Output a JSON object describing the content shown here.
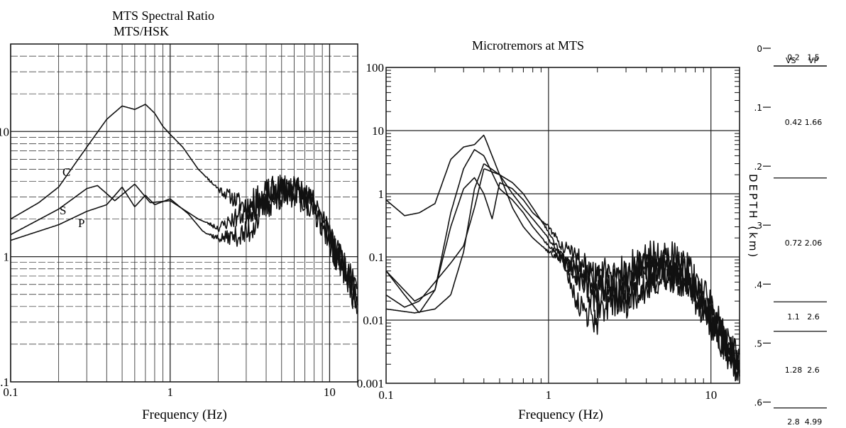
{
  "chart_data": [
    {
      "type": "line",
      "title": "MTS Spectral Ratio",
      "subtitle": "MTS/HSK",
      "xlabel": "Frequency (Hz)",
      "ylabel": "",
      "xscale": "log",
      "yscale": "log",
      "xlim": [
        0.1,
        15
      ],
      "ylim": [
        0.1,
        50
      ],
      "grid": true,
      "x_tick_labels": [
        "0.1",
        "1",
        "10"
      ],
      "y_tick_labels": [
        "0.1",
        "1",
        "10"
      ],
      "series": [
        {
          "name": "C",
          "color": "#111111",
          "x": [
            0.1,
            0.15,
            0.2,
            0.3,
            0.4,
            0.5,
            0.6,
            0.7,
            0.8,
            0.9,
            1.0,
            1.2,
            1.5,
            2,
            3,
            4,
            5,
            6,
            7,
            8,
            9,
            10,
            11,
            12,
            13,
            14,
            15
          ],
          "y": [
            2.0,
            2.7,
            3.6,
            7.5,
            12.5,
            16,
            15,
            16.5,
            14,
            11,
            9.5,
            7.5,
            5,
            3.5,
            2.5,
            3.0,
            3.2,
            3.5,
            3.0,
            2.6,
            2.0,
            1.5,
            1.1,
            0.9,
            0.7,
            0.5,
            0.45
          ]
        },
        {
          "name": "S",
          "color": "#111111",
          "x": [
            0.1,
            0.2,
            0.3,
            0.35,
            0.45,
            0.6,
            0.75,
            1.0,
            1.5,
            2,
            3,
            4,
            5,
            6,
            7,
            8,
            9,
            10,
            11,
            12,
            13,
            14,
            15
          ],
          "y": [
            1.5,
            2.4,
            3.5,
            3.7,
            2.8,
            3.8,
            2.7,
            2.8,
            2.0,
            1.7,
            2.3,
            3.1,
            3.5,
            3.4,
            2.9,
            2.4,
            1.9,
            1.5,
            1.0,
            0.9,
            0.7,
            0.55,
            0.45
          ]
        },
        {
          "name": "P",
          "color": "#111111",
          "x": [
            0.1,
            0.2,
            0.3,
            0.4,
            0.5,
            0.6,
            0.7,
            0.8,
            1.0,
            1.3,
            1.6,
            2,
            3,
            4,
            5,
            6,
            7,
            8,
            9,
            10,
            11,
            12,
            13,
            14,
            15
          ],
          "y": [
            1.35,
            1.8,
            2.3,
            2.6,
            3.6,
            2.5,
            3.1,
            2.6,
            2.9,
            2.2,
            1.6,
            1.4,
            1.5,
            2.6,
            3.2,
            3.3,
            3.0,
            2.5,
            1.9,
            1.4,
            1.0,
            0.85,
            0.75,
            0.6,
            0.5
          ]
        }
      ],
      "curve_labels": [
        "C",
        "S",
        "P"
      ]
    },
    {
      "type": "line",
      "title": "Microtremors at MTS",
      "xlabel": "Frequency (Hz)",
      "ylabel": "",
      "xscale": "log",
      "yscale": "log",
      "xlim": [
        0.1,
        15
      ],
      "ylim": [
        0.001,
        100
      ],
      "grid": true,
      "x_tick_labels": [
        "0.1",
        "1",
        "10"
      ],
      "y_tick_labels": [
        "0.001",
        "0.01",
        "0.1",
        "1",
        "10",
        "100"
      ],
      "series": [
        {
          "color": "#111111",
          "x": [
            0.1,
            0.13,
            0.16,
            0.2,
            0.25,
            0.3,
            0.35,
            0.4,
            0.5,
            0.6,
            0.7,
            0.8,
            1.0,
            1.5,
            2,
            3,
            4,
            5,
            7,
            9,
            10,
            12,
            14,
            15
          ],
          "y": [
            0.8,
            0.45,
            0.5,
            0.7,
            3.5,
            5.5,
            6.0,
            8.5,
            2.0,
            0.6,
            0.3,
            0.2,
            0.12,
            0.07,
            0.04,
            0.02,
            0.03,
            0.05,
            0.05,
            0.02,
            0.009,
            0.004,
            0.002,
            0.0015
          ]
        },
        {
          "color": "#111111",
          "x": [
            0.1,
            0.15,
            0.2,
            0.25,
            0.3,
            0.35,
            0.4,
            0.5,
            0.6,
            0.7,
            0.8,
            1.0,
            1.5,
            2,
            3,
            4,
            5,
            7,
            9,
            10,
            12,
            14,
            15
          ],
          "y": [
            0.06,
            0.02,
            0.03,
            0.5,
            2.5,
            5.0,
            4.0,
            1.2,
            0.8,
            0.5,
            0.3,
            0.15,
            0.05,
            0.02,
            0.025,
            0.04,
            0.06,
            0.04,
            0.015,
            0.01,
            0.005,
            0.002,
            0.0015
          ]
        },
        {
          "color": "#111111",
          "x": [
            0.1,
            0.15,
            0.2,
            0.25,
            0.3,
            0.35,
            0.4,
            0.5,
            0.6,
            0.7,
            0.8,
            1.0,
            1.2,
            1.5,
            2,
            3,
            4,
            5,
            7,
            9,
            10,
            12,
            14,
            15
          ],
          "y": [
            0.015,
            0.013,
            0.015,
            0.025,
            0.12,
            1.2,
            3.0,
            2.0,
            1.0,
            0.6,
            0.4,
            0.2,
            0.1,
            0.05,
            0.03,
            0.05,
            0.08,
            0.06,
            0.04,
            0.02,
            0.01,
            0.005,
            0.002,
            0.0012
          ]
        },
        {
          "color": "#111111",
          "x": [
            0.1,
            0.13,
            0.16,
            0.2,
            0.25,
            0.3,
            0.35,
            0.4,
            0.45,
            0.5,
            0.6,
            0.7,
            0.8,
            1.0,
            1.2,
            1.5,
            2,
            3,
            4,
            5,
            7,
            9,
            10,
            12,
            14,
            15
          ],
          "y": [
            0.06,
            0.025,
            0.013,
            0.03,
            0.3,
            1.2,
            1.8,
            1.0,
            0.4,
            1.5,
            1.2,
            0.8,
            0.5,
            0.3,
            0.15,
            0.1,
            0.05,
            0.06,
            0.1,
            0.12,
            0.07,
            0.03,
            0.015,
            0.007,
            0.003,
            0.002
          ]
        },
        {
          "color": "#111111",
          "x": [
            0.1,
            0.13,
            0.16,
            0.2,
            0.25,
            0.3,
            0.35,
            0.4,
            0.5,
            0.6,
            0.7,
            0.8,
            1.0,
            1.2,
            1.5,
            2,
            3,
            4,
            5,
            7,
            9,
            10,
            12,
            14,
            15
          ],
          "y": [
            0.025,
            0.016,
            0.02,
            0.04,
            0.08,
            0.15,
            0.6,
            2.5,
            2.0,
            1.5,
            1.0,
            0.6,
            0.25,
            0.1,
            0.02,
            0.01,
            0.03,
            0.07,
            0.1,
            0.05,
            0.02,
            0.01,
            0.005,
            0.002,
            0.0012
          ]
        }
      ]
    },
    {
      "type": "table",
      "title": "",
      "ylabel": "DEPTH (km)",
      "depth_axis": {
        "range": [
          0,
          0.65
        ],
        "ticks": [
          {
            "value": 0,
            "label": "0"
          },
          {
            "value": 0.1,
            "label": ".1"
          },
          {
            "value": 0.2,
            "label": ".2"
          },
          {
            "value": 0.3,
            "label": ".3"
          },
          {
            "value": 0.4,
            "label": ".4"
          },
          {
            "value": 0.5,
            "label": ".5"
          },
          {
            "value": 0.6,
            "label": ".6"
          }
        ]
      },
      "columns": [
        "VS",
        "VP"
      ],
      "layer_boundaries_km": [
        0.03,
        0.22,
        0.43,
        0.48,
        0.61
      ],
      "rows": [
        {
          "vs": "0.2",
          "vp": "1.5",
          "depth_km": 0.015
        },
        {
          "vs": "0.42",
          "vp": "1.66",
          "depth_km": 0.125
        },
        {
          "vs": "0.72",
          "vp": "2.06",
          "depth_km": 0.33
        },
        {
          "vs": "1.1",
          "vp": "2.6",
          "depth_km": 0.455
        },
        {
          "vs": "1.28",
          "vp": "2.6",
          "depth_km": 0.545
        },
        {
          "vs": "2.8",
          "vp": "4.99",
          "depth_km": 0.64
        }
      ]
    }
  ]
}
